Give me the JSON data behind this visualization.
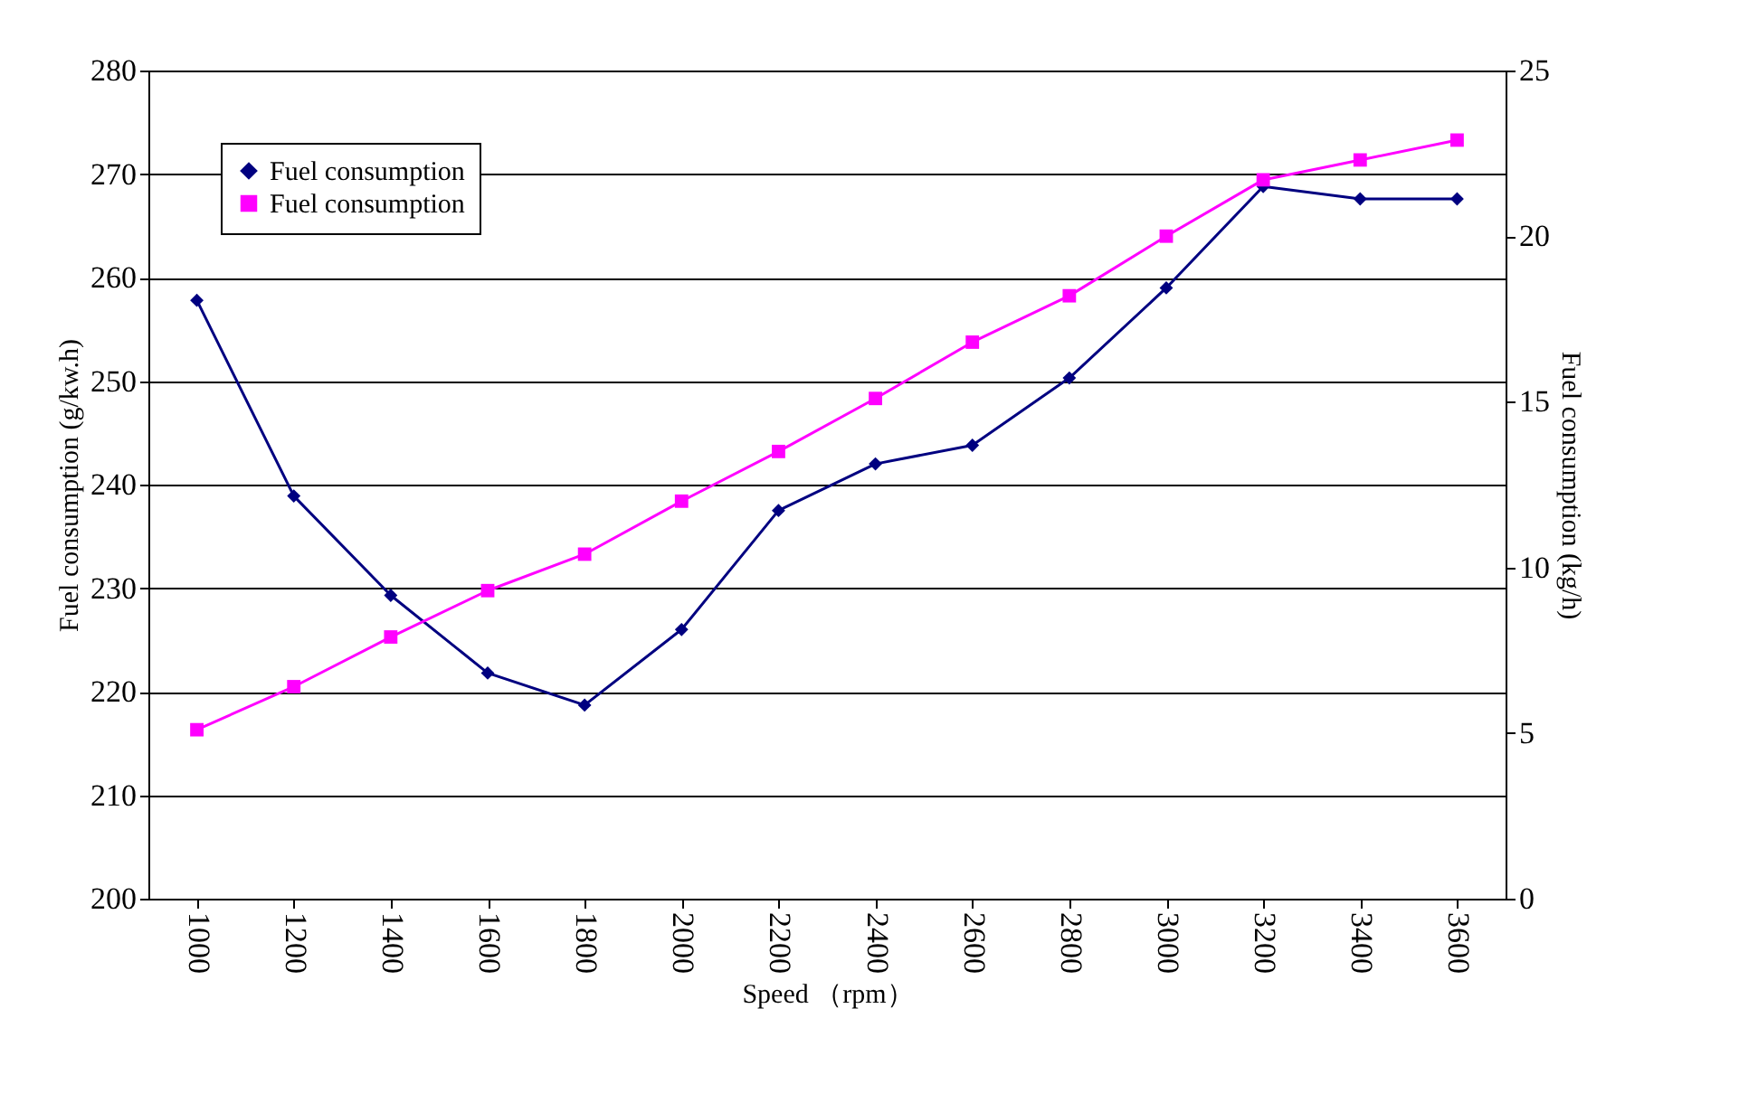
{
  "chart_data": {
    "type": "line",
    "categories": [
      "1000",
      "1200",
      "1400",
      "1600",
      "1800",
      "2000",
      "2200",
      "2400",
      "2600",
      "2800",
      "3000",
      "3200",
      "3400",
      "3600"
    ],
    "xlabel": "Speed （rpm）",
    "ylabel": "Fuel consumption (g/kw.h)",
    "y2label": "Fuel consumption (kg/h)",
    "ylim": [
      200,
      280
    ],
    "yticks": [
      200,
      210,
      220,
      230,
      240,
      250,
      260,
      270,
      280
    ],
    "y2lim": [
      0,
      25
    ],
    "y2ticks": [
      0,
      5,
      10,
      15,
      20,
      25
    ],
    "grid": "y",
    "legend": "top left",
    "series": [
      {
        "name": "Fuel consumption",
        "color": "#000080",
        "marker": "diamond",
        "values": [
          257.8,
          238.9,
          229.3,
          221.8,
          218.7,
          226.0,
          237.5,
          242.0,
          243.8,
          250.3,
          259.0,
          268.8,
          267.6,
          267.6
        ]
      },
      {
        "name": "Fuel consumption",
        "color": "#ff00ff",
        "marker": "square",
        "axis": "y2",
        "values": [
          5.1,
          6.4,
          7.9,
          9.3,
          10.4,
          12.0,
          13.5,
          15.1,
          16.8,
          18.2,
          20.0,
          21.7,
          22.3,
          22.9
        ]
      }
    ]
  }
}
